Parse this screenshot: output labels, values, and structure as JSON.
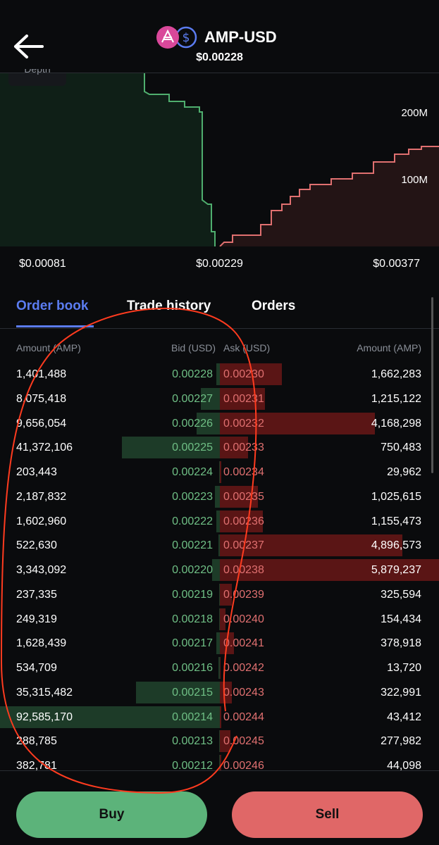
{
  "header": {
    "title": "AMP-USD",
    "price": "$0.00228"
  },
  "chart": {
    "tab": "Depth",
    "y_labels": [
      "200M",
      "100M"
    ],
    "x_labels": [
      "$0.00081",
      "$0.00229",
      "$0.00377"
    ]
  },
  "tabs": [
    "Order book",
    "Trade history",
    "Orders"
  ],
  "order_book": {
    "columns": [
      "Amount (AMP)",
      "Bid (USD)",
      "Ask (USD)",
      "Amount (AMP)"
    ],
    "rows": [
      [
        "1,401,488",
        "0.00228",
        "0.00230",
        "1,662,283"
      ],
      [
        "8,075,418",
        "0.00227",
        "0.00231",
        "1,215,122"
      ],
      [
        "9,656,054",
        "0.00226",
        "0.00232",
        "4,168,298"
      ],
      [
        "41,372,106",
        "0.00225",
        "0.00233",
        "750,483"
      ],
      [
        "203,443",
        "0.00224",
        "0.00234",
        "29,962"
      ],
      [
        "2,187,832",
        "0.00223",
        "0.00235",
        "1,025,615"
      ],
      [
        "1,602,960",
        "0.00222",
        "0.00236",
        "1,155,473"
      ],
      [
        "522,630",
        "0.00221",
        "0.00237",
        "4,896,573"
      ],
      [
        "3,343,092",
        "0.00220",
        "0.00238",
        "5,879,237"
      ],
      [
        "237,335",
        "0.00219",
        "0.00239",
        "325,594"
      ],
      [
        "249,319",
        "0.00218",
        "0.00240",
        "154,434"
      ],
      [
        "1,628,439",
        "0.00217",
        "0.00241",
        "378,918"
      ],
      [
        "534,709",
        "0.00216",
        "0.00242",
        "13,720"
      ],
      [
        "35,315,482",
        "0.00215",
        "0.00243",
        "322,991"
      ],
      [
        "92,585,170",
        "0.00214",
        "0.00244",
        "43,412"
      ],
      [
        "288,785",
        "0.00213",
        "0.00245",
        "277,982"
      ],
      [
        "382,781",
        "0.00212",
        "0.00246",
        "44,098"
      ]
    ]
  },
  "buttons": {
    "buy": "Buy",
    "sell": "Sell"
  }
}
